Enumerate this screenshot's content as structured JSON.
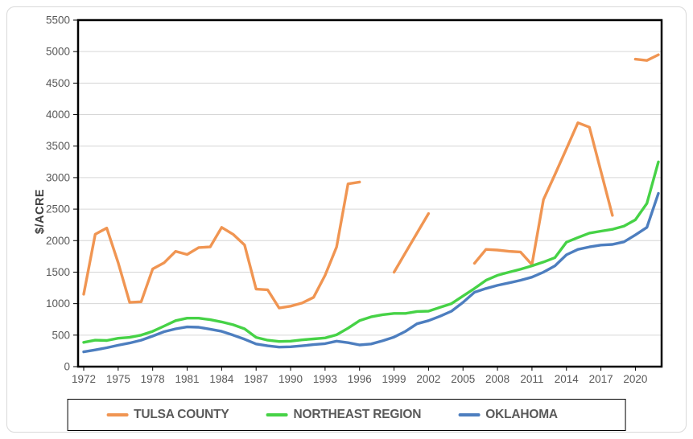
{
  "chart_data": {
    "type": "line",
    "title": "",
    "ylabel": "$/ACRE",
    "xlabel": "",
    "ylim": [
      0,
      5500
    ],
    "y_tick_step": 500,
    "grid": "horizontal-only",
    "legend_position": "bottom",
    "x": [
      1972,
      1973,
      1974,
      1975,
      1976,
      1977,
      1978,
      1979,
      1980,
      1981,
      1982,
      1983,
      1984,
      1985,
      1986,
      1987,
      1988,
      1989,
      1990,
      1991,
      1992,
      1993,
      1994,
      1995,
      1996,
      1997,
      1998,
      1999,
      2000,
      2001,
      2002,
      2003,
      2004,
      2005,
      2006,
      2007,
      2008,
      2009,
      2010,
      2011,
      2012,
      2013,
      2014,
      2015,
      2016,
      2017,
      2018,
      2019,
      2020,
      2021,
      2022
    ],
    "x_tick_labels": [
      "1972",
      "1975",
      "1978",
      "1981",
      "1984",
      "1987",
      "1990",
      "1993",
      "1996",
      "1999",
      "2002",
      "2005",
      "2008",
      "2011",
      "2014",
      "2017",
      "2020"
    ],
    "y_tick_labels": [
      "0",
      "500",
      "1000",
      "1500",
      "2000",
      "2500",
      "3000",
      "3500",
      "4000",
      "4500",
      "5000",
      "5500"
    ],
    "series": [
      {
        "name": "TULSA COUNTY",
        "color": "#F09552",
        "values": [
          1150,
          2100,
          2200,
          1650,
          1020,
          1030,
          1550,
          1650,
          1830,
          1780,
          1890,
          1900,
          2210,
          2100,
          1930,
          1230,
          1220,
          930,
          960,
          1010,
          1100,
          1450,
          1900,
          2900,
          2930,
          null,
          null,
          1500,
          1810,
          2120,
          2430,
          null,
          null,
          null,
          1640,
          1860,
          1850,
          1830,
          1820,
          1620,
          2650,
          3050,
          3460,
          3870,
          3800,
          3100,
          2400,
          null,
          4880,
          4860,
          4950
        ]
      },
      {
        "name": "NORTHEAST REGION",
        "color": "#46D246",
        "values": [
          385,
          420,
          415,
          450,
          465,
          500,
          560,
          645,
          730,
          770,
          770,
          745,
          710,
          665,
          600,
          465,
          420,
          400,
          405,
          425,
          440,
          455,
          505,
          610,
          730,
          790,
          825,
          845,
          845,
          875,
          880,
          940,
          1000,
          1120,
          1240,
          1370,
          1450,
          1500,
          1545,
          1600,
          1660,
          1730,
          1975,
          2050,
          2120,
          2150,
          2180,
          2230,
          2330,
          2590,
          3250
        ]
      },
      {
        "name": "OKLAHOMA",
        "color": "#4D7EBF",
        "values": [
          235,
          265,
          300,
          340,
          375,
          420,
          485,
          555,
          600,
          630,
          625,
          595,
          560,
          500,
          435,
          360,
          330,
          310,
          315,
          330,
          350,
          365,
          405,
          380,
          345,
          360,
          410,
          470,
          560,
          680,
          730,
          800,
          880,
          1020,
          1180,
          1240,
          1290,
          1330,
          1370,
          1420,
          1500,
          1600,
          1775,
          1860,
          1900,
          1930,
          1940,
          1980,
          2090,
          2210,
          2750
        ]
      }
    ],
    "style": {
      "gridline_color": "#d6d6d6",
      "frame_color": "#000000",
      "tick_text_color": "#595959",
      "line_width": 3.4
    }
  }
}
